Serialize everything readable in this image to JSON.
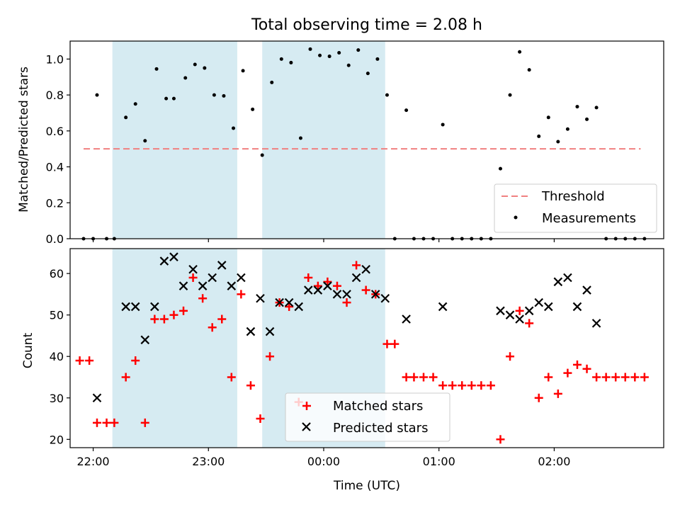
{
  "chart_data": {
    "title": "Total observing time = 2.08 h",
    "x_axis": {
      "label": "Time (UTC)",
      "range": [
        "21:48",
        "02:57"
      ],
      "ticks": [
        "22:00",
        "23:00",
        "00:00",
        "01:00",
        "02:00"
      ]
    },
    "shaded_intervals": [
      {
        "start": "22:10",
        "end": "23:15",
        "color": "#add8e6"
      },
      {
        "start": "23:28",
        "end": "00:32",
        "color": "#add8e6"
      }
    ],
    "subplots": [
      {
        "type": "scatter",
        "ylabel": "Matched/Predicted stars",
        "ylim": [
          0,
          1.1
        ],
        "yticks": [
          "0.0",
          "0.2",
          "0.4",
          "0.6",
          "0.8",
          "1.0"
        ],
        "threshold": {
          "name": "Threshold",
          "value": 0.5,
          "x_start": "21:55",
          "x_end": "02:45",
          "color": "#f08080"
        },
        "series": [
          {
            "name": "Measurements",
            "color": "#000000",
            "points": [
              {
                "x": "21:55",
                "y": 0.0
              },
              {
                "x": "22:00",
                "y": 0.0
              },
              {
                "x": "22:02",
                "y": 0.8
              },
              {
                "x": "22:07",
                "y": 0.0
              },
              {
                "x": "22:11",
                "y": 0.0
              },
              {
                "x": "22:17",
                "y": 0.675
              },
              {
                "x": "22:22",
                "y": 0.75
              },
              {
                "x": "22:27",
                "y": 0.545
              },
              {
                "x": "22:33",
                "y": 0.945
              },
              {
                "x": "22:38",
                "y": 0.78
              },
              {
                "x": "22:42",
                "y": 0.78
              },
              {
                "x": "22:48",
                "y": 0.895
              },
              {
                "x": "22:53",
                "y": 0.97
              },
              {
                "x": "22:58",
                "y": 0.95
              },
              {
                "x": "23:03",
                "y": 0.8
              },
              {
                "x": "23:08",
                "y": 0.795
              },
              {
                "x": "23:13",
                "y": 0.615
              },
              {
                "x": "23:18",
                "y": 0.935
              },
              {
                "x": "23:23",
                "y": 0.72
              },
              {
                "x": "23:28",
                "y": 0.465
              },
              {
                "x": "23:33",
                "y": 0.87
              },
              {
                "x": "23:38",
                "y": 1.0
              },
              {
                "x": "23:43",
                "y": 0.98
              },
              {
                "x": "23:48",
                "y": 0.56
              },
              {
                "x": "23:53",
                "y": 1.055
              },
              {
                "x": "23:58",
                "y": 1.02
              },
              {
                "x": "00:03",
                "y": 1.015
              },
              {
                "x": "00:08",
                "y": 1.035
              },
              {
                "x": "00:13",
                "y": 0.965
              },
              {
                "x": "00:18",
                "y": 1.05
              },
              {
                "x": "00:23",
                "y": 0.92
              },
              {
                "x": "00:28",
                "y": 1.0
              },
              {
                "x": "00:33",
                "y": 0.8
              },
              {
                "x": "00:37",
                "y": 0.0
              },
              {
                "x": "00:43",
                "y": 0.715
              },
              {
                "x": "00:47",
                "y": 0.0
              },
              {
                "x": "00:52",
                "y": 0.0
              },
              {
                "x": "00:57",
                "y": 0.0
              },
              {
                "x": "01:02",
                "y": 0.635
              },
              {
                "x": "01:07",
                "y": 0.0
              },
              {
                "x": "01:12",
                "y": 0.0
              },
              {
                "x": "01:17",
                "y": 0.0
              },
              {
                "x": "01:22",
                "y": 0.0
              },
              {
                "x": "01:27",
                "y": 0.0
              },
              {
                "x": "01:32",
                "y": 0.39
              },
              {
                "x": "01:37",
                "y": 0.8
              },
              {
                "x": "01:42",
                "y": 1.04
              },
              {
                "x": "01:47",
                "y": 0.94
              },
              {
                "x": "01:52",
                "y": 0.57
              },
              {
                "x": "01:57",
                "y": 0.675
              },
              {
                "x": "02:02",
                "y": 0.54
              },
              {
                "x": "02:07",
                "y": 0.61
              },
              {
                "x": "02:12",
                "y": 0.735
              },
              {
                "x": "02:17",
                "y": 0.665
              },
              {
                "x": "02:22",
                "y": 0.73
              },
              {
                "x": "02:27",
                "y": 0.0
              },
              {
                "x": "02:32",
                "y": 0.0
              },
              {
                "x": "02:37",
                "y": 0.0
              },
              {
                "x": "02:42",
                "y": 0.0
              },
              {
                "x": "02:47",
                "y": 0.0
              }
            ]
          }
        ],
        "legend": {
          "placement": "lower-right",
          "entries": [
            "Threshold",
            "Measurements"
          ]
        }
      },
      {
        "type": "scatter",
        "ylabel": "Count",
        "ylim": [
          18,
          66
        ],
        "yticks": [
          "20",
          "30",
          "40",
          "50",
          "60"
        ],
        "series": [
          {
            "name": "Matched stars",
            "color": "#ff0000",
            "marker": "+",
            "points": [
              {
                "x": "21:53",
                "y": 39
              },
              {
                "x": "21:58",
                "y": 39
              },
              {
                "x": "22:02",
                "y": 24
              },
              {
                "x": "22:07",
                "y": 24
              },
              {
                "x": "22:11",
                "y": 24
              },
              {
                "x": "22:17",
                "y": 35
              },
              {
                "x": "22:22",
                "y": 39
              },
              {
                "x": "22:27",
                "y": 24
              },
              {
                "x": "22:32",
                "y": 49
              },
              {
                "x": "22:37",
                "y": 49
              },
              {
                "x": "22:42",
                "y": 50
              },
              {
                "x": "22:47",
                "y": 51
              },
              {
                "x": "22:52",
                "y": 59
              },
              {
                "x": "22:57",
                "y": 54
              },
              {
                "x": "23:02",
                "y": 47
              },
              {
                "x": "23:07",
                "y": 49
              },
              {
                "x": "23:12",
                "y": 35
              },
              {
                "x": "23:17",
                "y": 55
              },
              {
                "x": "23:22",
                "y": 33
              },
              {
                "x": "23:27",
                "y": 25
              },
              {
                "x": "23:32",
                "y": 40
              },
              {
                "x": "23:37",
                "y": 53
              },
              {
                "x": "23:42",
                "y": 52
              },
              {
                "x": "23:47",
                "y": 29
              },
              {
                "x": "23:52",
                "y": 59
              },
              {
                "x": "23:57",
                "y": 57
              },
              {
                "x": "00:02",
                "y": 58
              },
              {
                "x": "00:07",
                "y": 57
              },
              {
                "x": "00:12",
                "y": 53
              },
              {
                "x": "00:17",
                "y": 62
              },
              {
                "x": "00:22",
                "y": 56
              },
              {
                "x": "00:27",
                "y": 55
              },
              {
                "x": "00:33",
                "y": 43
              },
              {
                "x": "00:37",
                "y": 43
              },
              {
                "x": "00:43",
                "y": 35
              },
              {
                "x": "00:47",
                "y": 35
              },
              {
                "x": "00:52",
                "y": 35
              },
              {
                "x": "00:57",
                "y": 35
              },
              {
                "x": "01:02",
                "y": 33
              },
              {
                "x": "01:07",
                "y": 33
              },
              {
                "x": "01:12",
                "y": 33
              },
              {
                "x": "01:17",
                "y": 33
              },
              {
                "x": "01:22",
                "y": 33
              },
              {
                "x": "01:27",
                "y": 33
              },
              {
                "x": "01:32",
                "y": 20
              },
              {
                "x": "01:37",
                "y": 40
              },
              {
                "x": "01:42",
                "y": 51
              },
              {
                "x": "01:47",
                "y": 48
              },
              {
                "x": "01:52",
                "y": 30
              },
              {
                "x": "01:57",
                "y": 35
              },
              {
                "x": "02:02",
                "y": 31
              },
              {
                "x": "02:07",
                "y": 36
              },
              {
                "x": "02:12",
                "y": 38
              },
              {
                "x": "02:17",
                "y": 37
              },
              {
                "x": "02:22",
                "y": 35
              },
              {
                "x": "02:27",
                "y": 35
              },
              {
                "x": "02:32",
                "y": 35
              },
              {
                "x": "02:37",
                "y": 35
              },
              {
                "x": "02:42",
                "y": 35
              },
              {
                "x": "02:47",
                "y": 35
              }
            ]
          },
          {
            "name": "Predicted stars",
            "color": "#000000",
            "marker": "x",
            "points": [
              {
                "x": "22:02",
                "y": 30
              },
              {
                "x": "22:17",
                "y": 52
              },
              {
                "x": "22:22",
                "y": 52
              },
              {
                "x": "22:27",
                "y": 44
              },
              {
                "x": "22:32",
                "y": 52
              },
              {
                "x": "22:37",
                "y": 63
              },
              {
                "x": "22:42",
                "y": 64
              },
              {
                "x": "22:47",
                "y": 57
              },
              {
                "x": "22:52",
                "y": 61
              },
              {
                "x": "22:57",
                "y": 57
              },
              {
                "x": "23:02",
                "y": 59
              },
              {
                "x": "23:07",
                "y": 62
              },
              {
                "x": "23:12",
                "y": 57
              },
              {
                "x": "23:17",
                "y": 59
              },
              {
                "x": "23:22",
                "y": 46
              },
              {
                "x": "23:27",
                "y": 54
              },
              {
                "x": "23:32",
                "y": 46
              },
              {
                "x": "23:37",
                "y": 53
              },
              {
                "x": "23:42",
                "y": 53
              },
              {
                "x": "23:47",
                "y": 52
              },
              {
                "x": "23:52",
                "y": 56
              },
              {
                "x": "23:57",
                "y": 56
              },
              {
                "x": "00:02",
                "y": 57
              },
              {
                "x": "00:07",
                "y": 55
              },
              {
                "x": "00:12",
                "y": 55
              },
              {
                "x": "00:17",
                "y": 59
              },
              {
                "x": "00:22",
                "y": 61
              },
              {
                "x": "00:27",
                "y": 55
              },
              {
                "x": "00:32",
                "y": 54
              },
              {
                "x": "00:43",
                "y": 49
              },
              {
                "x": "01:02",
                "y": 52
              },
              {
                "x": "01:32",
                "y": 51
              },
              {
                "x": "01:37",
                "y": 50
              },
              {
                "x": "01:42",
                "y": 49
              },
              {
                "x": "01:47",
                "y": 51
              },
              {
                "x": "01:52",
                "y": 53
              },
              {
                "x": "01:57",
                "y": 52
              },
              {
                "x": "02:02",
                "y": 58
              },
              {
                "x": "02:07",
                "y": 59
              },
              {
                "x": "02:12",
                "y": 52
              },
              {
                "x": "02:17",
                "y": 56
              },
              {
                "x": "02:22",
                "y": 48
              }
            ]
          }
        ],
        "legend": {
          "placement": "lower-center",
          "entries": [
            "Matched stars",
            "Predicted stars"
          ]
        }
      }
    ]
  }
}
